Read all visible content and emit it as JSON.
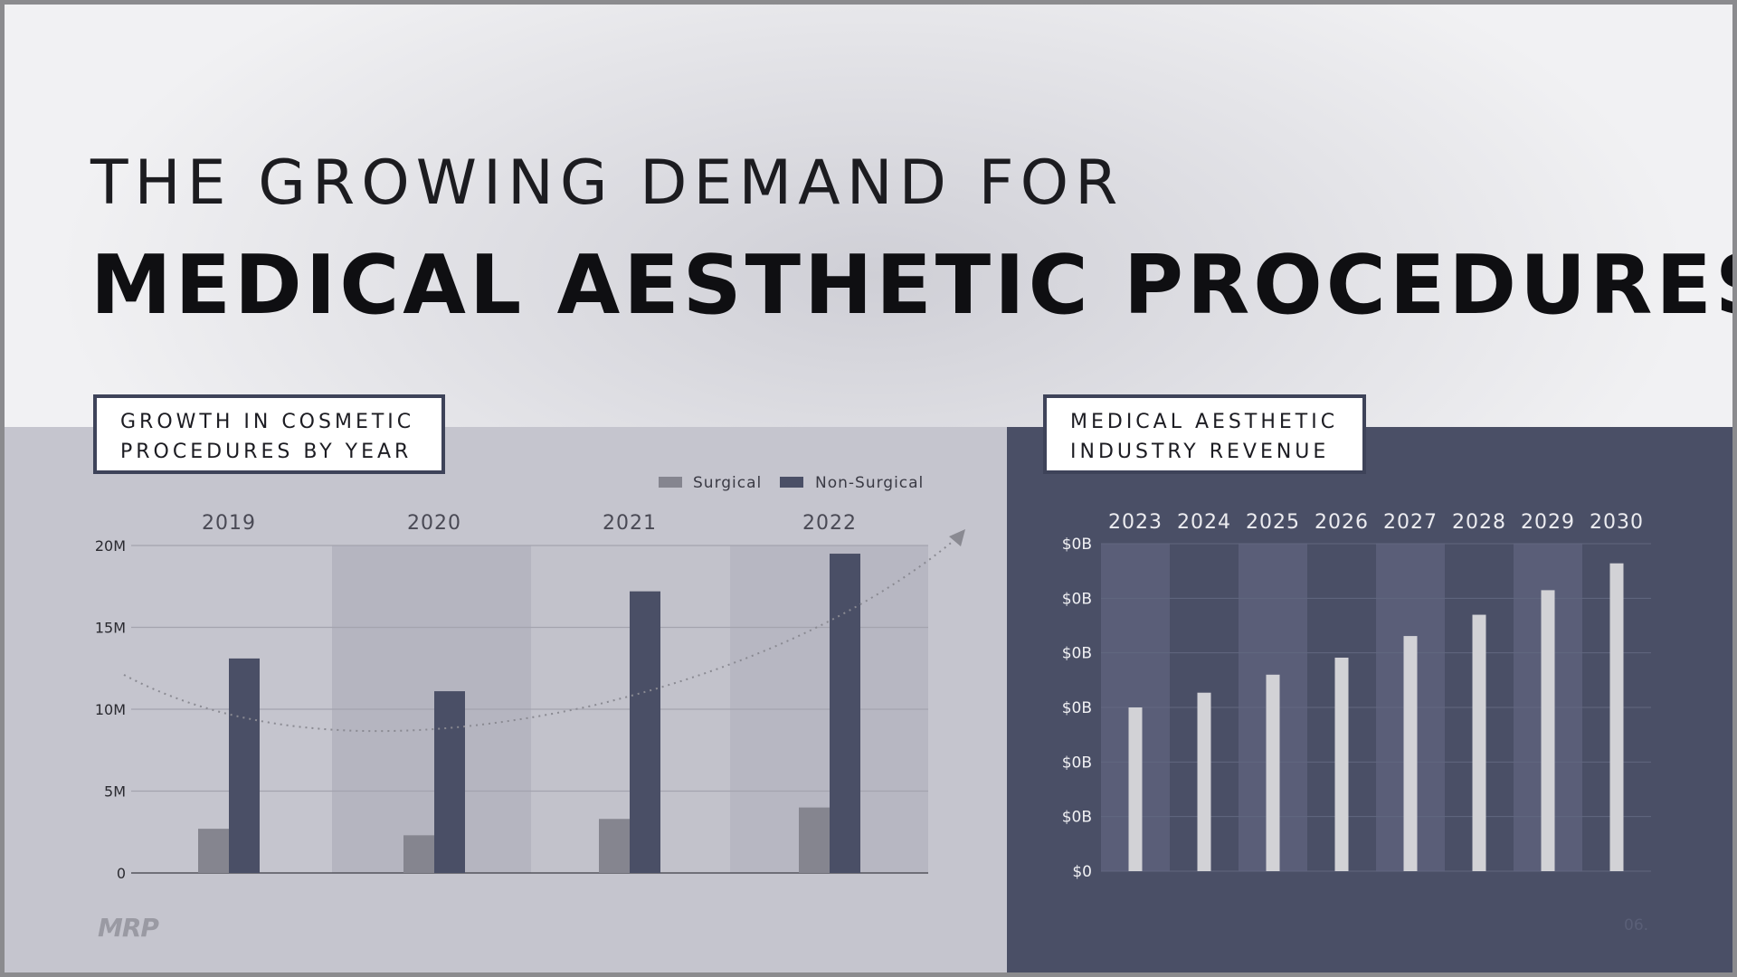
{
  "title_line1": "THE GROWING DEMAND FOR",
  "title_line2": "MEDICAL AESTHETIC PROCEDURES...",
  "footer": {
    "logo": "MRP",
    "page_number": "06."
  },
  "colors": {
    "surgical": "#85858f",
    "non_surgical": "#4a4f66",
    "revenue_bar": "#d2d2d6",
    "left_panel": "#c5c5ce",
    "right_panel": "#4a4f66"
  },
  "chart_data": [
    {
      "type": "bar",
      "label_line1": "GROWTH IN COSMETIC",
      "label_line2": "PROCEDURES BY YEAR",
      "categories": [
        "2019",
        "2020",
        "2021",
        "2022"
      ],
      "series": [
        {
          "name": "Surgical",
          "values": [
            2.7,
            2.3,
            3.3,
            4.0
          ]
        },
        {
          "name": "Non-Surgical",
          "values": [
            13.1,
            11.1,
            17.2,
            19.5
          ]
        }
      ],
      "ylim": [
        0,
        20
      ],
      "yticks": [
        0,
        5,
        10,
        15,
        20
      ],
      "ytick_labels": [
        "0",
        "5M",
        "10M",
        "15M",
        "20M"
      ],
      "legend": "top-right",
      "grid": true,
      "trend_arrow": true
    },
    {
      "type": "bar",
      "label_line1": "MEDICAL AESTHETIC",
      "label_line2": "INDUSTRY REVENUE",
      "categories": [
        "2023",
        "2024",
        "2025",
        "2026",
        "2027",
        "2028",
        "2029",
        "2030"
      ],
      "values": [
        0.5,
        0.545,
        0.6,
        0.652,
        0.718,
        0.783,
        0.858,
        0.94
      ],
      "ylim": [
        0,
        1
      ],
      "ytick_labels": [
        "$0",
        "$0B",
        "$0B",
        "$0B",
        "$0B",
        "$0B",
        "$0B"
      ],
      "grid": true
    }
  ]
}
